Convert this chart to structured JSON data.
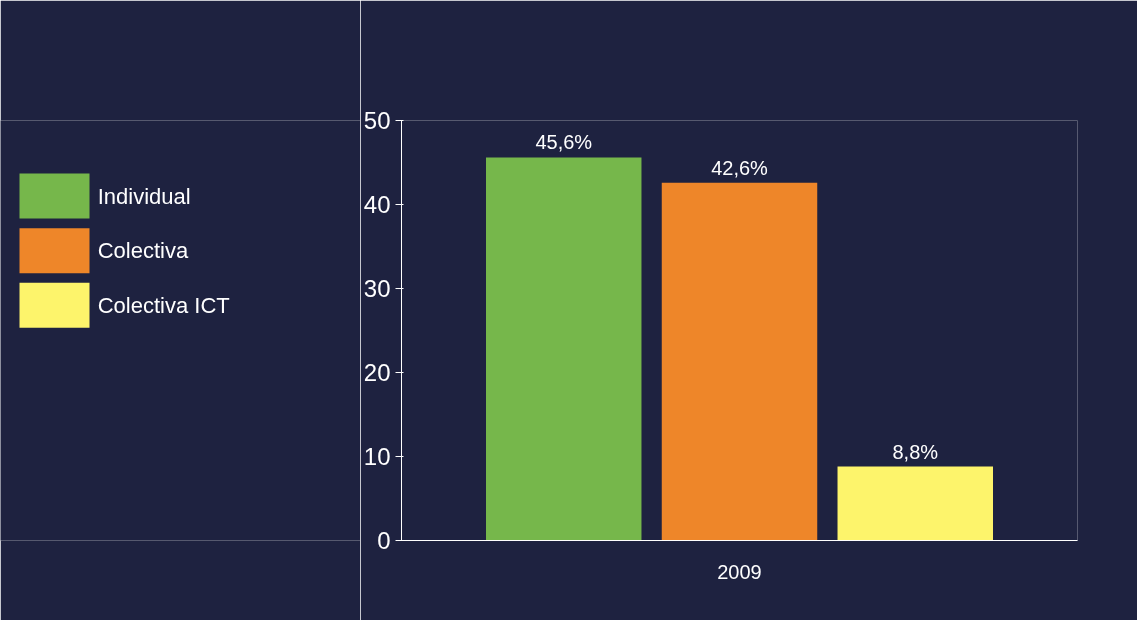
{
  "chart_data": {
    "type": "bar",
    "categories": [
      "2009"
    ],
    "series": [
      {
        "name": "Individual",
        "color": "#76b74b",
        "values": [
          45.6
        ],
        "value_labels": [
          "45,6%"
        ]
      },
      {
        "name": "Colectiva",
        "color": "#ee8629",
        "values": [
          42.6
        ],
        "value_labels": [
          "42,6%"
        ]
      },
      {
        "name": "Colectiva ICT",
        "color": "#fdf46b",
        "values": [
          8.8
        ],
        "value_labels": [
          "8,8%"
        ]
      }
    ],
    "ylim": [
      0,
      50
    ],
    "yticks": [
      0,
      10,
      20,
      30,
      40,
      50
    ],
    "grid": false,
    "legend": "left"
  }
}
